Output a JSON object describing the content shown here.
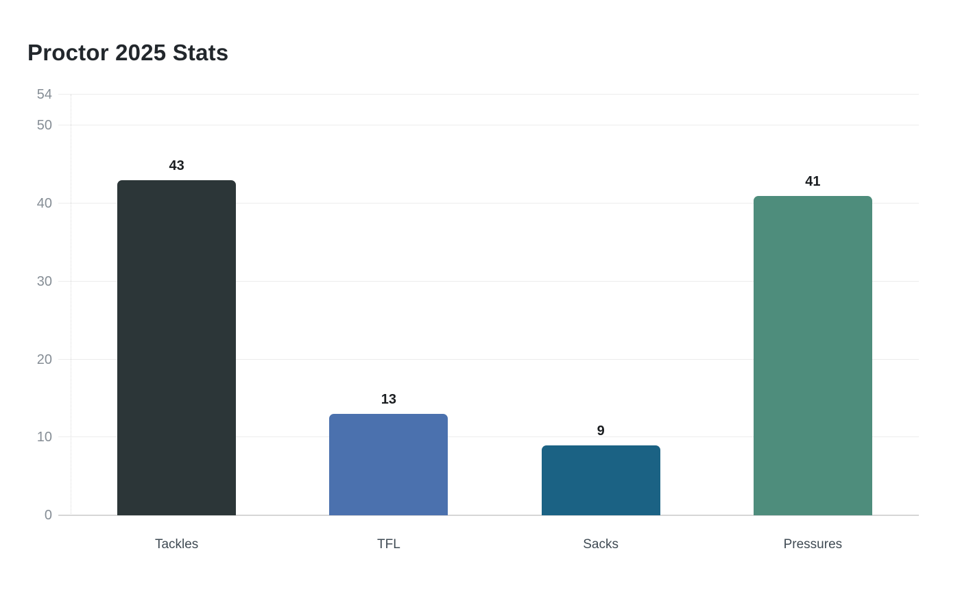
{
  "title": "Proctor 2025 Stats",
  "chart_data": {
    "type": "bar",
    "title": "Proctor 2025 Stats",
    "categories": [
      "Tackles",
      "TFL",
      "Sacks",
      "Pressures"
    ],
    "values": [
      43,
      13,
      9,
      41
    ],
    "value_labels": [
      "43",
      "13",
      "9",
      "41"
    ],
    "bar_colors": [
      "#2c3638",
      "#4b71ae",
      "#1b6284",
      "#4e8d7c"
    ],
    "xlabel": "",
    "ylabel": "",
    "ylim": [
      0,
      54
    ],
    "y_ticks": [
      0,
      10,
      20,
      30,
      40,
      50,
      54
    ],
    "grid": true,
    "legend": false,
    "background_color": "#ffffff",
    "title_color": "#22272c",
    "y_tick_label_color": "#858d95",
    "x_tick_label_color": "#3f4a53",
    "gridline_color": "#ececec",
    "baseline_color": "#d6d6d6"
  }
}
